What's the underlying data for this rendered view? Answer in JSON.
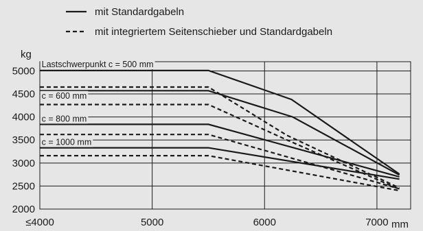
{
  "legend": {
    "solid_label": "mit Standardgabeln",
    "dashed_label": "mit integriertem Seitenschieber und Standardgabeln"
  },
  "chart_data": {
    "type": "line",
    "ylabel": "kg",
    "xlabel": "mm",
    "xlim": [
      4000,
      7300
    ],
    "ylim": [
      2000,
      5200
    ],
    "x_ticks": [
      {
        "value": 4000,
        "label": "≤4000"
      },
      {
        "value": 5000,
        "label": "5000"
      },
      {
        "value": 6000,
        "label": "6000"
      },
      {
        "value": 7000,
        "label": "7000"
      }
    ],
    "y_ticks": [
      2000,
      2500,
      3000,
      3500,
      4000,
      4500,
      5000
    ],
    "grid": true,
    "legend_position": "top",
    "annotations": [
      {
        "text": "Lastschwerpunkt c = 500 mm",
        "x": 4010,
        "y": 5080
      },
      {
        "text": "c = 600 mm",
        "x": 4010,
        "y": 4400
      },
      {
        "text": "c = 800 mm",
        "x": 4010,
        "y": 3900
      },
      {
        "text": "c = 1000 mm",
        "x": 4010,
        "y": 3390
      }
    ],
    "series": [
      {
        "style": "solid",
        "x": [
          4000,
          5500,
          6240,
          7200
        ],
        "y": [
          5010,
          5010,
          4380,
          2760
        ]
      },
      {
        "style": "solid",
        "x": [
          4000,
          5500,
          6250,
          7200
        ],
        "y": [
          4570,
          4570,
          4000,
          2740
        ]
      },
      {
        "style": "solid",
        "x": [
          4000,
          5500,
          7200
        ],
        "y": [
          3840,
          3840,
          2700
        ]
      },
      {
        "style": "solid",
        "x": [
          4000,
          5500,
          7200
        ],
        "y": [
          3330,
          3330,
          2650
        ]
      },
      {
        "style": "dashed",
        "x": [
          4000,
          5500,
          6200,
          7200
        ],
        "y": [
          4650,
          4650,
          3600,
          2460
        ]
      },
      {
        "style": "dashed",
        "x": [
          4000,
          5500,
          6200,
          7200
        ],
        "y": [
          4270,
          4270,
          3500,
          2430
        ]
      },
      {
        "style": "dashed",
        "x": [
          4000,
          5500,
          7200
        ],
        "y": [
          3620,
          3620,
          2440
        ]
      },
      {
        "style": "dashed",
        "x": [
          4000,
          5500,
          7200
        ],
        "y": [
          3160,
          3160,
          2400
        ]
      }
    ]
  }
}
